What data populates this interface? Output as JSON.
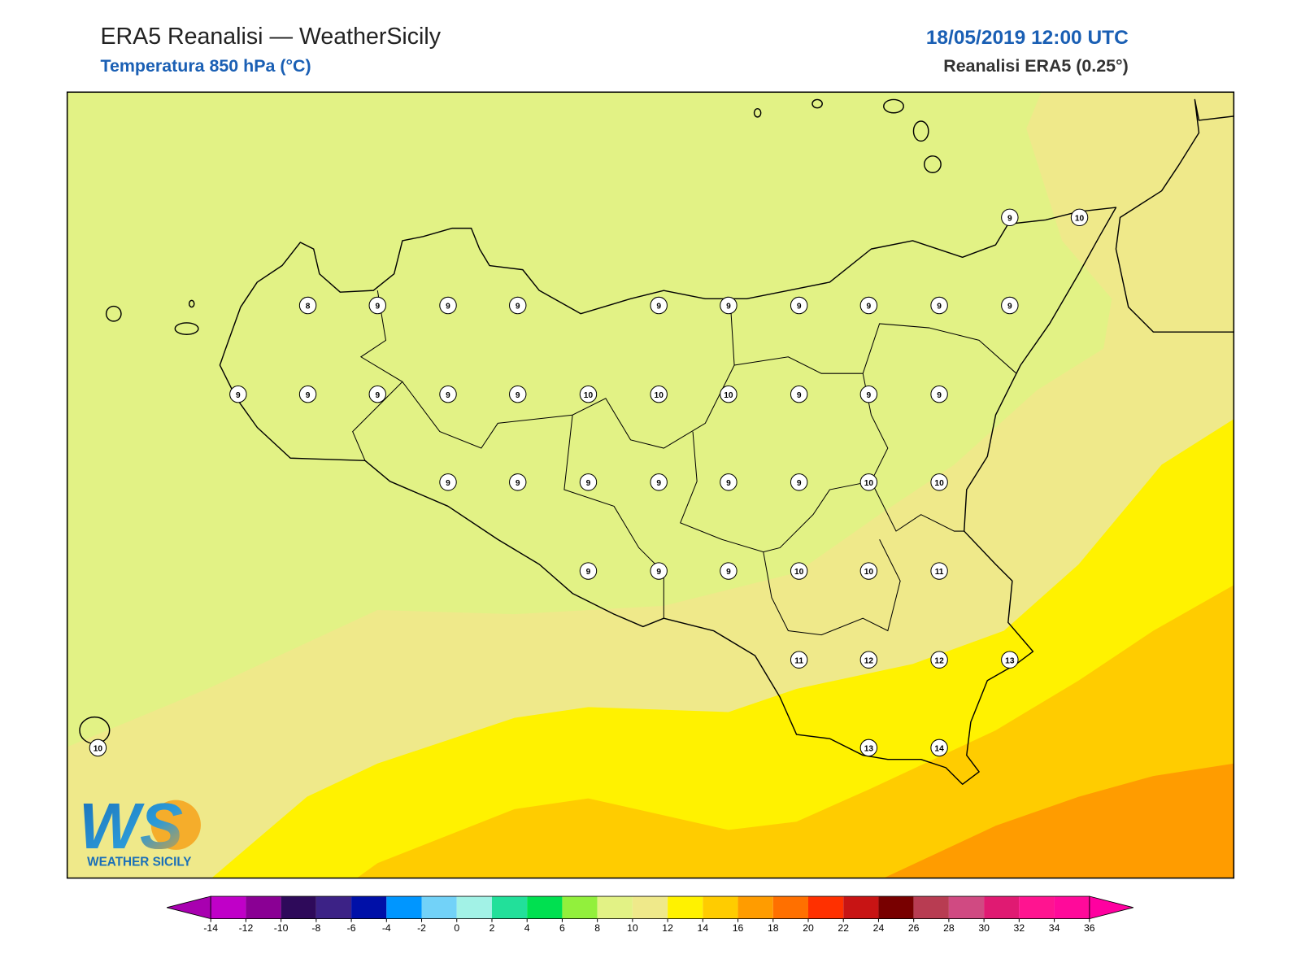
{
  "header": {
    "title": "ERA5 Reanalisi — WeatherSicily",
    "subtitle": "Temperatura 850 hPa (°C)",
    "datetime": "18/05/2019 12:00 UTC",
    "source": "Reanalisi ERA5 (0.25°)"
  },
  "map": {
    "stations": [
      9,
      10,
      8,
      9,
      9,
      9,
      9,
      9,
      9,
      9,
      9,
      9,
      9,
      9,
      9,
      9,
      9,
      10,
      10,
      10,
      9,
      9,
      9,
      9,
      9,
      9,
      9,
      9,
      9,
      10,
      10,
      9,
      9,
      9,
      10,
      10,
      11,
      11,
      12,
      12,
      13,
      10,
      13,
      14
    ]
  },
  "colorbar": {
    "ticks": [
      -14,
      -12,
      -10,
      -8,
      -6,
      -4,
      -2,
      0,
      2,
      4,
      6,
      8,
      10,
      12,
      14,
      16,
      18,
      20,
      22,
      24,
      26,
      28,
      30,
      32,
      34,
      36
    ],
    "colors": [
      "#c000c8",
      "#8a0094",
      "#2e0a5a",
      "#3c2286",
      "#0010a8",
      "#0096ff",
      "#72d2f8",
      "#a2f2e6",
      "#22e09a",
      "#00e050",
      "#92f03c",
      "#e2f285",
      "#efe98a",
      "#fff200",
      "#ffcc00",
      "#ff9c00",
      "#ff7000",
      "#ff3000",
      "#c81414",
      "#780000",
      "#b83c52",
      "#d04a82",
      "#e01a72",
      "#ff1490",
      "#ff0a9a"
    ],
    "under_color": "#a800b0",
    "over_color": "#ff00a0"
  },
  "logo": {
    "mark": "WS",
    "caption": "WEATHER SICILY"
  }
}
